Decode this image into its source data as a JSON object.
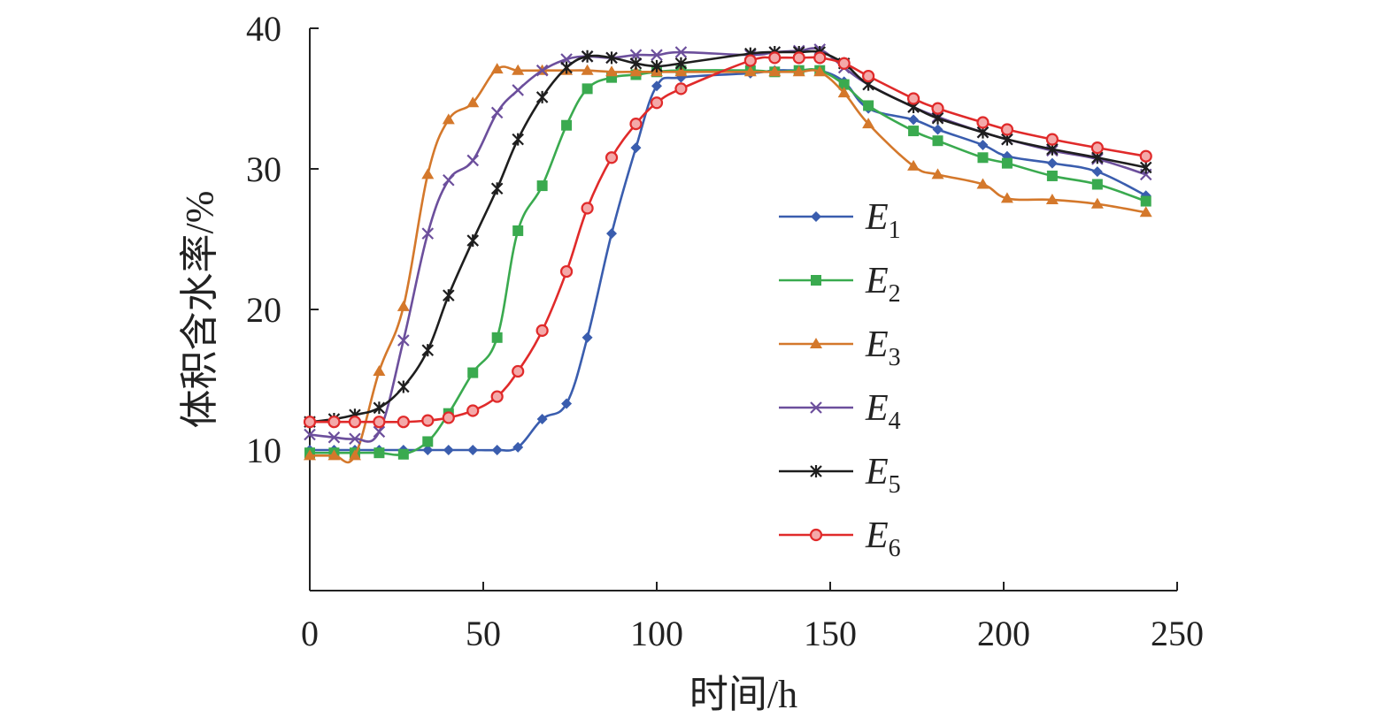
{
  "chart_data": {
    "type": "line",
    "xlabel": "时间/h",
    "ylabel": "体积含水率/%",
    "xlim": [
      0,
      250
    ],
    "ylim": [
      0,
      40
    ],
    "xticks": [
      "0",
      "50",
      "100",
      "150",
      "200",
      "250"
    ],
    "yticks": [
      "10",
      "20",
      "30",
      "40"
    ],
    "legend_position": "center",
    "grid": false,
    "series": [
      {
        "name": "E",
        "subscript": "1",
        "color": "#3a5dae",
        "marker": "diamond",
        "x": [
          0,
          7,
          13,
          20,
          27,
          34,
          40,
          47,
          54,
          60,
          67,
          74,
          80,
          87,
          94,
          100,
          107,
          127,
          134,
          141,
          147,
          154,
          161,
          174,
          181,
          194,
          201,
          214,
          227,
          241
        ],
        "y": [
          10.0,
          10.0,
          10.0,
          10.0,
          10.0,
          10.0,
          10.0,
          10.0,
          10.0,
          10.2,
          12.2,
          13.3,
          18.0,
          25.4,
          31.5,
          35.9,
          36.5,
          36.8,
          37.0,
          37.0,
          37.0,
          36.2,
          34.3,
          33.5,
          32.8,
          31.7,
          30.9,
          30.4,
          29.8,
          28.1
        ]
      },
      {
        "name": "E",
        "subscript": "2",
        "color": "#3aaa4f",
        "marker": "square",
        "x": [
          0,
          7,
          13,
          20,
          27,
          34,
          40,
          47,
          54,
          60,
          67,
          74,
          80,
          87,
          94,
          100,
          107,
          127,
          134,
          141,
          147,
          154,
          161,
          174,
          181,
          194,
          201,
          214,
          227,
          241
        ],
        "y": [
          9.8,
          9.8,
          9.8,
          9.8,
          9.7,
          10.6,
          12.6,
          15.5,
          18.0,
          25.6,
          28.8,
          33.1,
          35.7,
          36.5,
          36.7,
          36.9,
          37.0,
          37.0,
          36.9,
          37.0,
          37.0,
          36.0,
          34.5,
          32.7,
          32.0,
          30.8,
          30.4,
          29.5,
          28.9,
          27.7
        ]
      },
      {
        "name": "E",
        "subscript": "3",
        "color": "#d4782b",
        "marker": "triangle",
        "x": [
          0,
          7,
          13,
          20,
          27,
          34,
          40,
          47,
          54,
          60,
          67,
          74,
          80,
          87,
          94,
          100,
          107,
          127,
          134,
          141,
          147,
          154,
          161,
          174,
          181,
          194,
          201,
          214,
          227,
          241
        ],
        "y": [
          9.6,
          9.6,
          9.6,
          15.6,
          20.2,
          29.6,
          33.5,
          34.7,
          37.1,
          37.0,
          37.0,
          37.0,
          37.0,
          36.9,
          36.9,
          36.9,
          36.9,
          36.9,
          36.9,
          36.9,
          36.9,
          35.4,
          33.2,
          30.2,
          29.6,
          28.9,
          27.9,
          27.8,
          27.5,
          26.9
        ]
      },
      {
        "name": "E",
        "subscript": "4",
        "color": "#6c4f9c",
        "marker": "x",
        "x": [
          0,
          7,
          13,
          20,
          27,
          34,
          40,
          47,
          54,
          60,
          67,
          74,
          80,
          87,
          94,
          100,
          107,
          127,
          134,
          141,
          147,
          154,
          161,
          174,
          181,
          194,
          201,
          214,
          227,
          241
        ],
        "y": [
          11.1,
          10.9,
          10.8,
          11.3,
          17.8,
          25.4,
          29.2,
          30.6,
          34.0,
          35.6,
          37.0,
          37.8,
          38.0,
          37.9,
          38.1,
          38.1,
          38.3,
          38.1,
          38.3,
          38.4,
          38.5,
          37.2,
          36.0,
          34.4,
          33.7,
          32.6,
          32.1,
          31.3,
          30.7,
          29.6
        ]
      },
      {
        "name": "E",
        "subscript": "5",
        "color": "#1e1e1e",
        "marker": "star",
        "x": [
          0,
          7,
          13,
          20,
          27,
          34,
          40,
          47,
          54,
          60,
          67,
          74,
          80,
          87,
          94,
          100,
          107,
          127,
          134,
          141,
          147,
          154,
          161,
          174,
          181,
          194,
          201,
          214,
          227,
          241
        ],
        "y": [
          12.0,
          12.2,
          12.5,
          13.0,
          14.5,
          17.1,
          21.0,
          24.9,
          28.6,
          32.1,
          35.1,
          37.2,
          38.0,
          37.9,
          37.5,
          37.3,
          37.5,
          38.2,
          38.3,
          38.3,
          38.3,
          37.5,
          36.0,
          34.4,
          33.6,
          32.6,
          32.1,
          31.4,
          30.8,
          30.1
        ]
      },
      {
        "name": "E",
        "subscript": "6",
        "color": "#e02a2a",
        "marker": "circle",
        "x": [
          0,
          7,
          13,
          20,
          27,
          34,
          40,
          47,
          54,
          60,
          67,
          74,
          80,
          87,
          94,
          100,
          107,
          127,
          134,
          141,
          147,
          154,
          161,
          174,
          181,
          194,
          201,
          214,
          227,
          241
        ],
        "y": [
          12.0,
          12.0,
          12.0,
          12.0,
          12.0,
          12.1,
          12.3,
          12.8,
          13.8,
          15.6,
          18.5,
          22.7,
          27.2,
          30.8,
          33.2,
          34.7,
          35.7,
          37.7,
          37.9,
          37.9,
          37.9,
          37.5,
          36.6,
          35.0,
          34.3,
          33.3,
          32.8,
          32.1,
          31.5,
          30.9
        ]
      }
    ]
  }
}
